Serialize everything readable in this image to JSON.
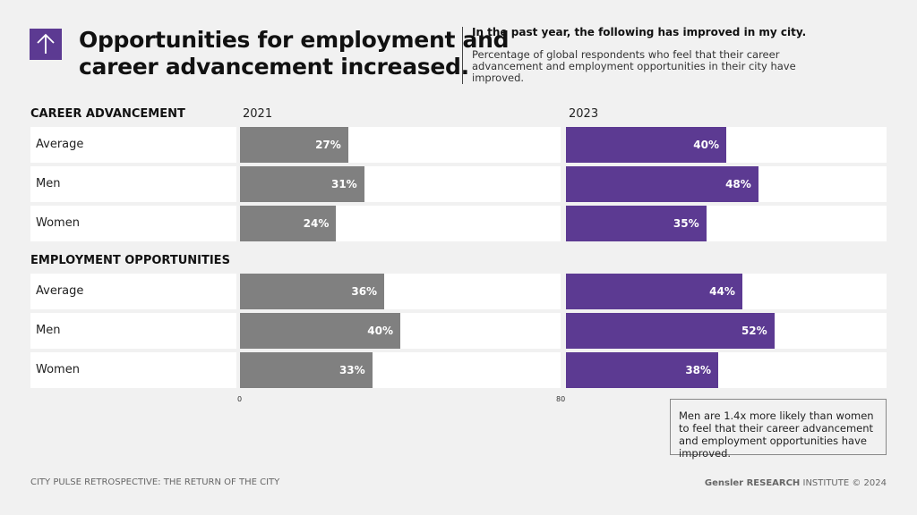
{
  "header": {
    "title_line1": "Opportunities for employment and",
    "title_line2": "career advancement increased.",
    "question": "In the past year, the following has improved in my city.",
    "description": "Percentage of global respondents who feel that their career advancement and employment opportunities in their city have improved.",
    "icon": "arrow-up-icon"
  },
  "chart_data": {
    "type": "bar",
    "orientation": "horizontal",
    "xlim": [
      0,
      80
    ],
    "tick_labels": [
      "0",
      "80"
    ],
    "years": [
      "2021",
      "2023"
    ],
    "colors": {
      "2021": "#808080",
      "2023": "#5c3a92"
    },
    "groups": [
      {
        "name": "CAREER ADVANCEMENT",
        "categories": [
          "Average",
          "Men",
          "Women"
        ],
        "series": [
          {
            "name": "2021",
            "values": [
              27,
              31,
              24
            ]
          },
          {
            "name": "2023",
            "values": [
              40,
              48,
              35
            ]
          }
        ]
      },
      {
        "name": "EMPLOYMENT OPPORTUNITIES",
        "categories": [
          "Average",
          "Men",
          "Women"
        ],
        "series": [
          {
            "name": "2021",
            "values": [
              36,
              40,
              33
            ]
          },
          {
            "name": "2023",
            "values": [
              44,
              52,
              38
            ]
          }
        ]
      }
    ]
  },
  "note": "Men are 1.4x more likely than women to feel that their career advancement and employment opportunities have improved.",
  "footer": {
    "left": "CITY PULSE RETROSPECTIVE: THE RETURN OF THE CITY",
    "brand_bold": "Gensler RESEARCH",
    "brand_rest": " INSTITUTE  © 2024"
  }
}
